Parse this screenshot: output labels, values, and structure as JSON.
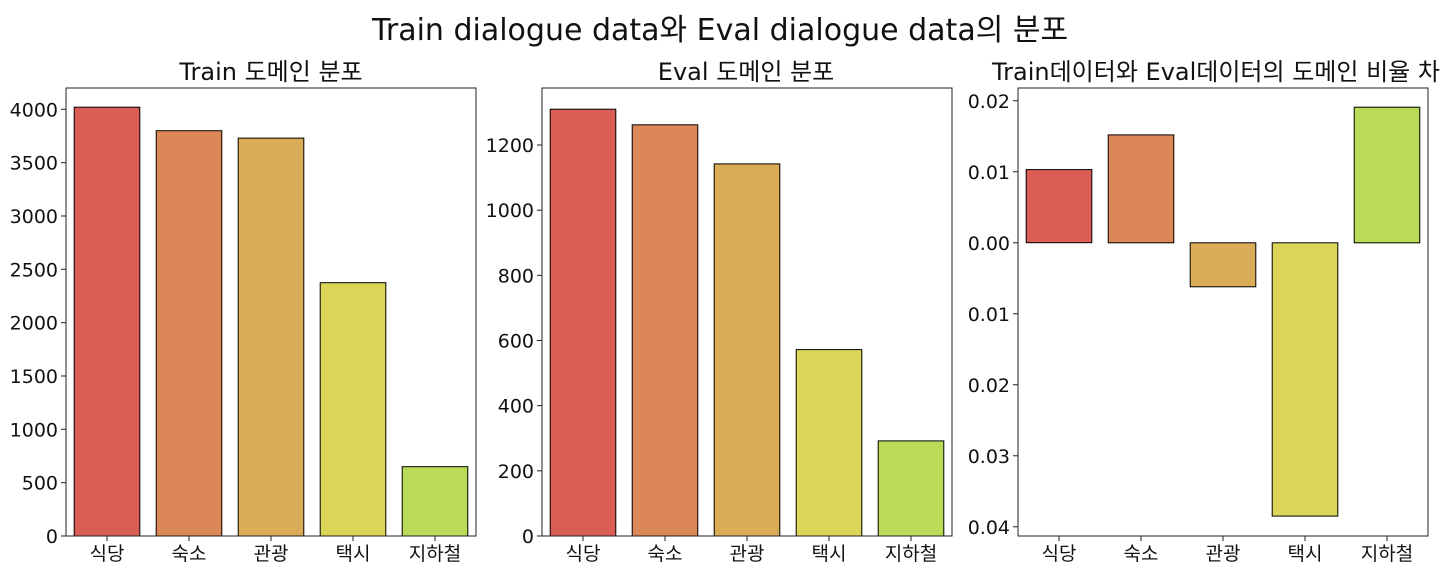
{
  "figure": {
    "title": "Train dialogue data와 Eval dialogue data의 분포"
  },
  "chart_data": [
    {
      "type": "bar",
      "title": "Train 도메인 분포",
      "categories": [
        "식당",
        "숙소",
        "관광",
        "택시",
        "지하철"
      ],
      "values": [
        4020,
        3800,
        3730,
        2375,
        650
      ],
      "ylim": [
        0,
        4200
      ],
      "yticks": [
        0,
        500,
        1000,
        1500,
        2000,
        2500,
        3000,
        3500,
        4000
      ],
      "ytick_labels": [
        "0",
        "500",
        "1000",
        "1500",
        "2000",
        "2500",
        "3000",
        "3500",
        "4000"
      ],
      "colors": [
        "#db5e56",
        "#db8757",
        "#dbac57",
        "#dbd657",
        "#b9db57"
      ],
      "grid": false
    },
    {
      "type": "bar",
      "title": "Eval 도메인 분포",
      "categories": [
        "식당",
        "숙소",
        "관광",
        "택시",
        "지하철"
      ],
      "values": [
        1310,
        1262,
        1142,
        572,
        292
      ],
      "ylim": [
        0,
        1375
      ],
      "yticks": [
        0,
        200,
        400,
        600,
        800,
        1000,
        1200
      ],
      "ytick_labels": [
        "0",
        "200",
        "400",
        "600",
        "800",
        "1000",
        "1200"
      ],
      "colors": [
        "#db5e56",
        "#db8757",
        "#dbac57",
        "#dbd657",
        "#b9db57"
      ],
      "grid": false
    },
    {
      "type": "bar",
      "title": "Train데이터와 Eval데이터의 도메인 비율 차(%",
      "categories": [
        "식당",
        "숙소",
        "관광",
        "택시",
        "지하철"
      ],
      "values": [
        0.0103,
        0.0152,
        -0.0062,
        -0.0385,
        0.0191
      ],
      "ylim": [
        -0.0413,
        0.0218
      ],
      "yticks": [
        0.02,
        0.01,
        0.0,
        -0.01,
        -0.02,
        -0.03,
        -0.04
      ],
      "ytick_labels": [
        "0.02",
        "0.01",
        "0.00",
        "0.01",
        "0.02",
        "0.03",
        "0.04"
      ],
      "colors": [
        "#db5e56",
        "#db8757",
        "#dbac57",
        "#dbd657",
        "#b9db57"
      ],
      "grid": false
    }
  ]
}
